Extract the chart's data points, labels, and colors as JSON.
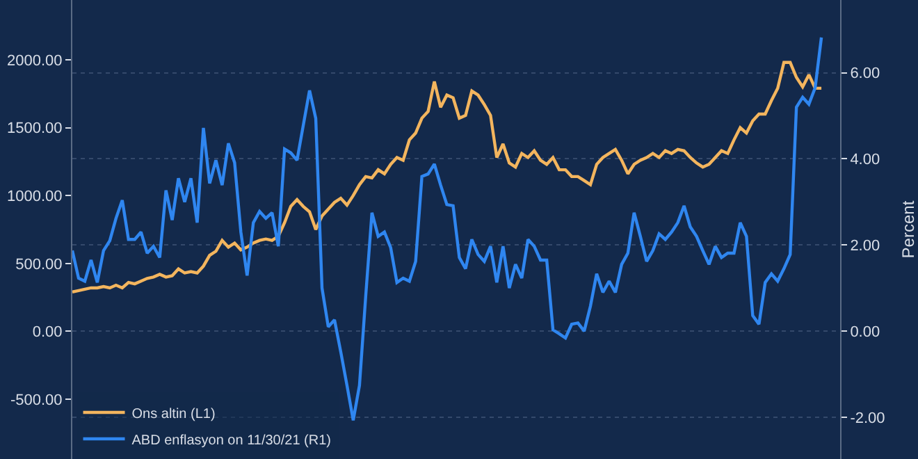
{
  "chart_data": {
    "type": "line",
    "y2label": "Percent",
    "categories": [
      null,
      null,
      null,
      null,
      null,
      null,
      null,
      null,
      null,
      null,
      null,
      null,
      null,
      null,
      null,
      null,
      null,
      null,
      null,
      null,
      null,
      null,
      null,
      null,
      null,
      null,
      null,
      null,
      null,
      null,
      null,
      null,
      null,
      null,
      null,
      null,
      null,
      null,
      null,
      null,
      null,
      null,
      null,
      null,
      null,
      null,
      null,
      null,
      null,
      null,
      null,
      null,
      null,
      null,
      null,
      null,
      null,
      null,
      null,
      null,
      null,
      null,
      null,
      null,
      null,
      null,
      null,
      null,
      null,
      null,
      null,
      null,
      null,
      null,
      null,
      null,
      null,
      null,
      null,
      null,
      null,
      null,
      null,
      null,
      null,
      null,
      null,
      null,
      null,
      null,
      null,
      null,
      null,
      null,
      null,
      null,
      null,
      null,
      null,
      null,
      null,
      null,
      null,
      null,
      null,
      null,
      null,
      null,
      null,
      null,
      null,
      null,
      null,
      null,
      null,
      null,
      null,
      null,
      null,
      null,
      null
    ],
    "series": [
      {
        "name": "Ons altin (L1)",
        "color": "#f3b55e",
        "values": [
          290,
          300,
          310,
          320,
          320,
          330,
          320,
          340,
          320,
          360,
          350,
          370,
          390,
          400,
          420,
          400,
          410,
          460,
          430,
          440,
          430,
          480,
          560,
          590,
          670,
          620,
          650,
          600,
          620,
          650,
          670,
          680,
          670,
          700,
          800,
          920,
          970,
          920,
          880,
          750,
          850,
          900,
          950,
          980,
          930,
          1000,
          1080,
          1140,
          1130,
          1190,
          1160,
          1230,
          1280,
          1260,
          1410,
          1460,
          1570,
          1620,
          1840,
          1650,
          1740,
          1720,
          1570,
          1590,
          1770,
          1740,
          1670,
          1590,
          1280,
          1380,
          1240,
          1210,
          1310,
          1280,
          1330,
          1260,
          1230,
          1280,
          1190,
          1190,
          1140,
          1140,
          1110,
          1080,
          1230,
          1280,
          1310,
          1340,
          1260,
          1160,
          1230,
          1260,
          1280,
          1310,
          1280,
          1330,
          1310,
          1340,
          1330,
          1280,
          1240,
          1210,
          1230,
          1280,
          1330,
          1310,
          1410,
          1500,
          1460,
          1550,
          1600,
          1600,
          1700,
          1790,
          1980,
          1980,
          1870,
          1800,
          1890,
          1790,
          1790
        ]
      },
      {
        "name": "ABD enflasyon on 11/30/21 (R1)",
        "color": "#2f86f0",
        "axis": "y2",
        "values": [
          1.87,
          1.23,
          1.16,
          1.65,
          1.13,
          1.87,
          2.1,
          2.62,
          3.04,
          2.13,
          2.13,
          2.3,
          1.81,
          1.97,
          1.71,
          3.27,
          2.58,
          3.55,
          3.0,
          3.55,
          2.52,
          4.72,
          3.43,
          3.97,
          3.39,
          4.36,
          3.91,
          2.3,
          1.29,
          2.52,
          2.78,
          2.62,
          2.75,
          1.97,
          4.23,
          4.14,
          3.97,
          4.78,
          5.59,
          4.94,
          1.0,
          0.1,
          0.26,
          -0.48,
          -1.26,
          -2.07,
          -1.26,
          0.81,
          2.75,
          2.2,
          2.3,
          1.94,
          1.13,
          1.23,
          1.16,
          1.62,
          3.59,
          3.65,
          3.88,
          3.39,
          2.94,
          2.91,
          1.71,
          1.45,
          2.13,
          1.78,
          1.62,
          1.97,
          1.13,
          1.97,
          1.0,
          1.55,
          1.23,
          2.13,
          1.97,
          1.65,
          1.65,
          0.03,
          -0.06,
          -0.16,
          0.16,
          0.19,
          0.0,
          0.58,
          1.33,
          0.9,
          1.16,
          0.9,
          1.55,
          1.81,
          2.75,
          2.2,
          1.62,
          1.87,
          2.26,
          2.13,
          2.3,
          2.52,
          2.91,
          2.42,
          2.2,
          1.87,
          1.55,
          1.97,
          1.71,
          1.81,
          1.81,
          2.52,
          2.2,
          0.36,
          0.16,
          1.13,
          1.33,
          1.16,
          1.45,
          1.78,
          5.2,
          5.43,
          5.27,
          5.65,
          6.82
        ]
      }
    ],
    "ylim": [
      -940,
      2440
    ],
    "yticks": [
      {
        "value": -500,
        "label": "-500.00"
      },
      {
        "value": 0,
        "label": "0.00"
      },
      {
        "value": 500,
        "label": "500.00"
      },
      {
        "value": 1000,
        "label": "1000.00"
      },
      {
        "value": 1500,
        "label": "1500.00"
      },
      {
        "value": 2000,
        "label": "2000.00"
      }
    ],
    "y2lim": [
      -2.97,
      7.69
    ],
    "y2ticks": [
      {
        "value": -2,
        "label": "-2.00"
      },
      {
        "value": 0,
        "label": "0.00"
      },
      {
        "value": 2,
        "label": "2.00"
      },
      {
        "value": 4,
        "label": "4.00"
      },
      {
        "value": 6,
        "label": "6.00"
      }
    ],
    "tick_labels": "y",
    "grid": "y",
    "legend": "bottom left",
    "marker": "none",
    "line_style": "solid"
  }
}
